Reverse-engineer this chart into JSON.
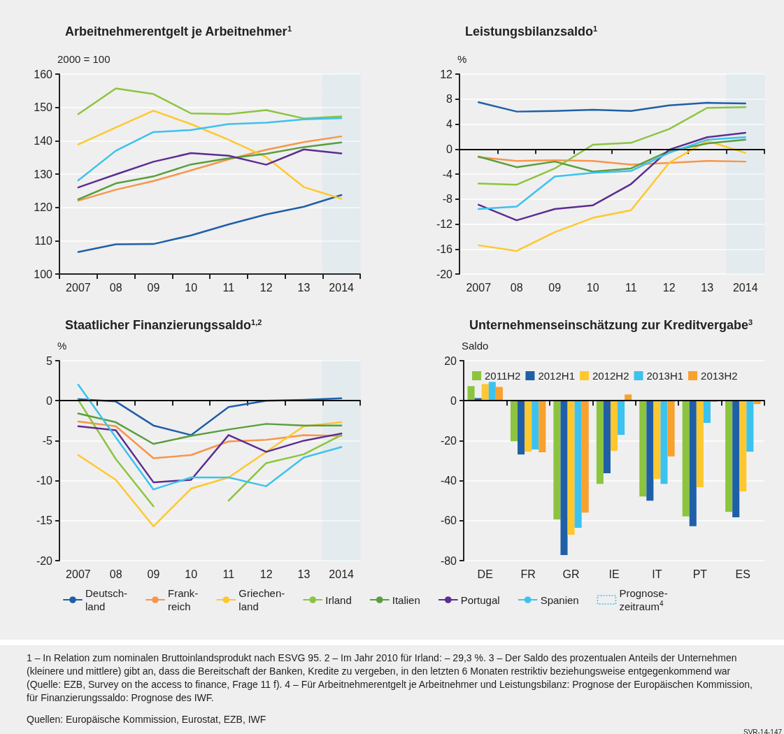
{
  "chart_data": [
    {
      "type": "line",
      "title": "Arbeitnehmerentgelt je Arbeitnehmer$^{1}$",
      "ylabel": "2000 = 100",
      "x": [
        2007,
        2008,
        2009,
        2010,
        2011,
        2012,
        2013,
        2014
      ],
      "xlim": [
        2006.5,
        2014.5
      ],
      "xticks": [
        {
          "value": 2006.5,
          "label": null
        },
        {
          "value": 2007,
          "label": "2007"
        },
        {
          "value": 2007.5,
          "label": null
        },
        {
          "value": 2008,
          "label": "08"
        },
        {
          "value": 2008.5,
          "label": null
        },
        {
          "value": 2009,
          "label": "09"
        },
        {
          "value": 2009.5,
          "label": null
        },
        {
          "value": 2010,
          "label": "10"
        },
        {
          "value": 2010.5,
          "label": null
        },
        {
          "value": 2011,
          "label": "11"
        },
        {
          "value": 2011.5,
          "label": null
        },
        {
          "value": 2012,
          "label": "12"
        },
        {
          "value": 2012.5,
          "label": null
        },
        {
          "value": 2013,
          "label": "13"
        },
        {
          "value": 2013.5,
          "label": null
        },
        {
          "value": 2014,
          "label": "2014"
        },
        {
          "value": 2014.5,
          "label": null
        }
      ],
      "series": [
        {
          "color": "#1f5fa8",
          "values": [
            106.6,
            108.9,
            109.0,
            111.6,
            114.9,
            117.9,
            120.2,
            123.7
          ]
        },
        {
          "color": "#f7964a",
          "values": [
            122.0,
            125.3,
            127.9,
            131.1,
            134.4,
            137.3,
            139.6,
            141.3
          ]
        },
        {
          "color": "#fdc82f",
          "values": [
            138.9,
            144.0,
            149.0,
            145.0,
            140.3,
            135.1,
            126.1,
            122.6
          ]
        },
        {
          "color": "#8cc43f",
          "values": [
            148.0,
            155.7,
            154.0,
            148.2,
            148.0,
            149.2,
            146.7,
            147.3
          ]
        },
        {
          "color": "#5a9e3e",
          "values": [
            122.4,
            127.2,
            129.3,
            132.9,
            134.7,
            136.1,
            138.1,
            139.5
          ]
        },
        {
          "color": "#5c2d91",
          "values": [
            126.0,
            129.9,
            133.7,
            136.3,
            135.5,
            132.8,
            137.4,
            136.2
          ]
        },
        {
          "color": "#3cc2ee",
          "values": [
            128.1,
            137.0,
            142.6,
            143.2,
            145.0,
            145.4,
            146.4,
            146.8
          ]
        }
      ],
      "ylim": [
        100,
        160
      ],
      "yticks": [
        100,
        110,
        120,
        130,
        140,
        150,
        160
      ],
      "grid": "y",
      "legend": false,
      "marker": "none",
      "line_style": "solid",
      "bands": [
        {
          "axis": "x",
          "from": 2013.5,
          "to": 2014.5,
          "color": "#3cc2ee"
        }
      ]
    },
    {
      "type": "line",
      "title": "Leistungsbilanzsaldo$^{1}$",
      "ylabel": "%",
      "x": [
        2007,
        2008,
        2009,
        2010,
        2011,
        2012,
        2013,
        2014
      ],
      "xlim": [
        2006.5,
        2014.5
      ],
      "xticks": [
        {
          "value": 2006.5,
          "label": null
        },
        {
          "value": 2007,
          "label": "2007"
        },
        {
          "value": 2007.5,
          "label": null
        },
        {
          "value": 2008,
          "label": "08"
        },
        {
          "value": 2008.5,
          "label": null
        },
        {
          "value": 2009,
          "label": "09"
        },
        {
          "value": 2009.5,
          "label": null
        },
        {
          "value": 2010,
          "label": "10"
        },
        {
          "value": 2010.5,
          "label": null
        },
        {
          "value": 2011,
          "label": "11"
        },
        {
          "value": 2011.5,
          "label": null
        },
        {
          "value": 2012,
          "label": "12"
        },
        {
          "value": 2012.5,
          "label": null
        },
        {
          "value": 2013,
          "label": "13"
        },
        {
          "value": 2013.5,
          "label": null
        },
        {
          "value": 2014,
          "label": "2014"
        },
        {
          "value": 2014.5,
          "label": null
        }
      ],
      "series": [
        {
          "color": "#1f5fa8",
          "values": [
            7.5,
            6.0,
            6.1,
            6.3,
            6.1,
            7.0,
            7.4,
            7.3
          ]
        },
        {
          "color": "#f7964a",
          "values": [
            -1.3,
            -1.9,
            -1.8,
            -1.9,
            -2.5,
            -2.2,
            -1.9,
            -2.0
          ]
        },
        {
          "color": "#fdc82f",
          "values": [
            -15.4,
            -16.3,
            -13.3,
            -11.0,
            -9.8,
            -2.2,
            1.3,
            -0.6
          ]
        },
        {
          "color": "#8cc43f",
          "values": [
            -5.5,
            -5.7,
            -3.1,
            0.7,
            1.0,
            3.2,
            6.6,
            6.7
          ]
        },
        {
          "color": "#5a9e3e",
          "values": [
            -1.2,
            -2.9,
            -2.0,
            -3.6,
            -3.1,
            -0.3,
            0.9,
            1.5
          ]
        },
        {
          "color": "#5c2d91",
          "values": [
            -8.9,
            -11.4,
            -9.6,
            -9.0,
            -5.6,
            -0.1,
            1.9,
            2.6
          ]
        },
        {
          "color": "#3cc2ee",
          "values": [
            -9.6,
            -9.2,
            -4.4,
            -3.8,
            -3.5,
            -0.6,
            1.5,
            1.9
          ]
        }
      ],
      "ylim": [
        -20,
        12
      ],
      "yticks": [
        -20,
        -16,
        -12,
        -8,
        -4,
        0,
        4,
        8,
        12
      ],
      "grid": "y",
      "legend": false,
      "marker": "none",
      "line_style": "solid",
      "ref_lines": [
        {
          "axis": "y",
          "value": 0,
          "color": "#000000"
        }
      ],
      "bands": [
        {
          "axis": "x",
          "from": 2013.5,
          "to": 2014.5,
          "color": "#3cc2ee"
        }
      ]
    },
    {
      "type": "line",
      "title": "Staatlicher Finanzierungssaldo$^{1,2}$",
      "ylabel": "%",
      "x": [
        2007,
        2008,
        2009,
        2010,
        2011,
        2012,
        2013,
        2014
      ],
      "xlim": [
        2006.5,
        2014.5
      ],
      "xticks": [
        {
          "value": 2006.5,
          "label": null
        },
        {
          "value": 2007,
          "label": "2007"
        },
        {
          "value": 2007.5,
          "label": null
        },
        {
          "value": 2008,
          "label": "08"
        },
        {
          "value": 2008.5,
          "label": null
        },
        {
          "value": 2009,
          "label": "09"
        },
        {
          "value": 2009.5,
          "label": null
        },
        {
          "value": 2010,
          "label": "10"
        },
        {
          "value": 2010.5,
          "label": null
        },
        {
          "value": 2011,
          "label": "11"
        },
        {
          "value": 2011.5,
          "label": null
        },
        {
          "value": 2012,
          "label": "12"
        },
        {
          "value": 2012.5,
          "label": null
        },
        {
          "value": 2013,
          "label": "13"
        },
        {
          "value": 2013.5,
          "label": null
        },
        {
          "value": 2014,
          "label": "2014"
        },
        {
          "value": 2014.5,
          "label": null
        }
      ],
      "series": [
        {
          "name": "Deutsch-\nland",
          "color": "#1f5fa8",
          "values": [
            0.2,
            -0.1,
            -3.1,
            -4.3,
            -0.8,
            0.0,
            0.1,
            0.3
          ]
        },
        {
          "name": "Frank-\nreich",
          "color": "#f7964a",
          "values": [
            -2.6,
            -3.2,
            -7.2,
            -6.8,
            -5.1,
            -4.9,
            -4.3,
            -4.4
          ]
        },
        {
          "name": "Griechen-\nland",
          "color": "#fdc82f",
          "values": [
            -6.8,
            -9.9,
            -15.7,
            -11.0,
            -9.6,
            -6.4,
            -3.2,
            -2.7
          ]
        },
        {
          "name": "Irland",
          "color": "#8cc43f",
          "values": [
            0.1,
            -7.3,
            -13.2,
            null,
            -12.5,
            -7.8,
            -6.7,
            -4.3
          ]
        },
        {
          "name": "Italien",
          "color": "#5a9e3e",
          "values": [
            -1.6,
            -2.7,
            -5.4,
            -4.4,
            -3.6,
            -2.9,
            -3.1,
            -3.1
          ]
        },
        {
          "name": "Portugal",
          "color": "#5c2d91",
          "values": [
            -3.2,
            -3.7,
            -10.2,
            -9.9,
            -4.3,
            -6.4,
            -5.0,
            -4.1
          ]
        },
        {
          "name": "Spanien",
          "color": "#3cc2ee",
          "values": [
            2.0,
            -4.6,
            -11.1,
            -9.6,
            -9.6,
            -10.7,
            -7.1,
            -5.8
          ]
        }
      ],
      "ylim": [
        -20,
        5
      ],
      "yticks": [
        -20,
        -15,
        -10,
        -5,
        0,
        5
      ],
      "grid": "y",
      "legend": "bottom",
      "marker": "none",
      "line_style": "solid",
      "ref_lines": [
        {
          "axis": "y",
          "value": 0,
          "color": "#000000"
        }
      ],
      "bands": [
        {
          "axis": "x",
          "from": 2013.5,
          "to": 2014.5,
          "color": "#3cc2ee",
          "label": "Prognose-\nzeitraum$^{4}$"
        }
      ]
    },
    {
      "type": "bar",
      "title": "Unternehmenseinschätzung zur Kreditvergabe$^{3}$",
      "ylabel": "Saldo",
      "categories": [
        "DE",
        "FR",
        "GR",
        "IE",
        "IT",
        "PT",
        "ES"
      ],
      "series": [
        {
          "name": "2011H2",
          "color": "#8cc43f",
          "values": [
            7.3,
            -20.3,
            -59.4,
            -41.6,
            -47.9,
            -57.9,
            -55.6
          ]
        },
        {
          "name": "2012H1",
          "color": "#1f5fa8",
          "values": [
            1.3,
            -26.9,
            -77.2,
            -36.3,
            -50.0,
            -62.8,
            -58.3
          ]
        },
        {
          "name": "2012H2",
          "color": "#fdc82f",
          "values": [
            8.3,
            -25.5,
            -67.1,
            -25.1,
            -39.1,
            -43.3,
            -45.4
          ]
        },
        {
          "name": "2013H1",
          "color": "#3cc2ee",
          "values": [
            9.4,
            -24.4,
            -63.6,
            -17.1,
            -41.6,
            -11.1,
            -25.5
          ]
        },
        {
          "name": "2013H2",
          "color": "#f7a12e",
          "values": [
            6.9,
            -25.8,
            -56.0,
            3.1,
            -27.9,
            -0.6,
            -1.7
          ]
        }
      ],
      "ylim": [
        -80,
        20
      ],
      "yticks": [
        -80,
        -60,
        -40,
        -20,
        0,
        20
      ],
      "grid": "y",
      "legend": "top",
      "ref_lines": [
        {
          "axis": "y",
          "value": 0,
          "color": "#000000"
        }
      ],
      "annotations": [
        "1 – In Relation zum nominalen Bruttoinlandsprodukt nach ESVG 95.  2 – Im Jahr 2010 für Irland: – 29,3 %.  3 – Der Saldo des prozentualen Anteils der Unternehmen (kleinere und mittlere) gibt an, dass die Bereitschaft der Banken, Kredite zu vergeben, in den letzten 6 Monaten restriktiv beziehungsweise entgegenkommend war (Quelle: EZB, Survey on the access to finance, Frage 11 f).   4 – Für Arbeitnehmerentgelt je Arbeitnehmer und Leistungsbilanz: Prognose der Europäischen Kommission, für Finanzierungssaldo: Prognose des IWF.",
        "Quellen: Europäische Kommission, Eurostat, EZB, IWF",
        "SVR-14-147"
      ]
    }
  ]
}
